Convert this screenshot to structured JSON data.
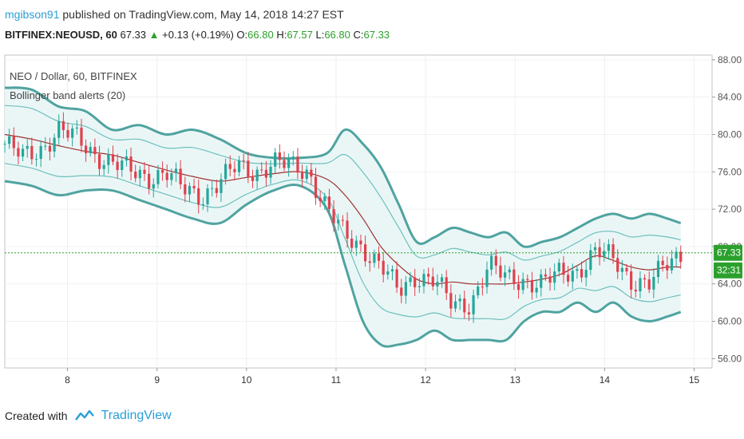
{
  "header": {
    "author": "mgibson91",
    "published_text": "published on TradingView.com, May 14, 2018 14:27 EST"
  },
  "quote": {
    "symbol": "BITFINEX:NEOUSD, 60",
    "last": "67.33",
    "change": "+0.13 (+0.19%)",
    "o_label": "O:",
    "o_value": "66.80",
    "h_label": "H:",
    "h_value": "67.57",
    "l_label": "L:",
    "l_value": "66.80",
    "c_label": "C:",
    "c_value": "67.33"
  },
  "legend": {
    "line1": "NEO / Dollar, 60, BITFINEX",
    "line2": "Bollinger band alerts (20)"
  },
  "price_tag": "67.33",
  "time_tag": "32:31",
  "footer": {
    "created_with": "Created with",
    "brand": "TradingView"
  },
  "colors": {
    "up": "#26a69a",
    "down": "#e0404d",
    "band": "#4fa3a0",
    "inner_band": "#6cc0bd",
    "basis": "#a0302f",
    "fill": "#eaf6f6",
    "price_line": "#2ca02c"
  },
  "chart_data": {
    "type": "candlestick",
    "title": "NEO / Dollar, 60, BITFINEX",
    "indicator": "Bollinger band alerts (20)",
    "x_ticks": [
      "8",
      "9",
      "10",
      "11",
      "12",
      "13",
      "14",
      "15"
    ],
    "y_ticks": [
      "56.00",
      "60.00",
      "64.00",
      "68.00",
      "72.00",
      "76.00",
      "80.00",
      "84.00",
      "88.00"
    ],
    "ylim": [
      55,
      88.5
    ],
    "xlim": [
      7.3,
      15.2
    ],
    "last_price": 67.33,
    "series": [
      {
        "name": "Close",
        "x": [
          7.3,
          7.5,
          7.7,
          7.9,
          8.1,
          8.3,
          8.5,
          8.7,
          8.9,
          9.1,
          9.3,
          9.5,
          9.7,
          9.9,
          10.1,
          10.3,
          10.5,
          10.7,
          10.9,
          11.1,
          11.3,
          11.5,
          11.7,
          11.9,
          12.1,
          12.3,
          12.5,
          12.7,
          12.9,
          13.1,
          13.3,
          13.5,
          13.7,
          13.9,
          14.1,
          14.3,
          14.5,
          14.7,
          14.85
        ],
        "values": [
          79,
          77.5,
          78.5,
          80.5,
          79.5,
          78,
          77,
          76,
          75.5,
          76,
          74,
          73.5,
          75,
          76.5,
          76,
          77,
          76.5,
          76,
          72,
          69,
          68,
          66,
          63,
          65,
          64.5,
          61.5,
          62,
          66,
          64.5,
          64.5,
          64,
          65,
          65.5,
          67.5,
          66.5,
          64.5,
          64,
          66,
          67.3
        ]
      },
      {
        "name": "Upper band",
        "x": [
          7.3,
          7.6,
          7.9,
          8.2,
          8.5,
          8.8,
          9.1,
          9.4,
          9.7,
          10,
          10.3,
          10.6,
          10.9,
          11.1,
          11.3,
          11.5,
          11.7,
          11.9,
          12.1,
          12.3,
          12.5,
          12.7,
          12.9,
          13.1,
          13.3,
          13.5,
          13.7,
          13.9,
          14.1,
          14.3,
          14.5,
          14.7,
          14.85
        ],
        "values": [
          85,
          84.8,
          83,
          82.5,
          80.5,
          81,
          80,
          80.5,
          79.5,
          78,
          77.5,
          77.5,
          78,
          80.5,
          79,
          76.5,
          72.5,
          68.5,
          69,
          70,
          69.5,
          69,
          69.5,
          68,
          68.5,
          69,
          70,
          71,
          71.5,
          71,
          71.5,
          71,
          70.5
        ]
      },
      {
        "name": "Lower band",
        "x": [
          7.3,
          7.6,
          7.9,
          8.2,
          8.5,
          8.8,
          9.1,
          9.4,
          9.7,
          10,
          10.3,
          10.6,
          10.9,
          11.1,
          11.3,
          11.5,
          11.7,
          11.9,
          12.1,
          12.3,
          12.5,
          12.7,
          12.9,
          13.1,
          13.3,
          13.5,
          13.7,
          13.9,
          14.1,
          14.3,
          14.5,
          14.7,
          14.85
        ],
        "values": [
          75,
          74.5,
          73.5,
          74,
          74,
          73,
          72,
          71,
          70.5,
          72.5,
          74,
          74.5,
          72,
          66,
          60,
          57.5,
          57.5,
          58,
          59,
          58,
          58,
          58,
          58,
          60,
          61,
          61,
          62,
          61,
          62,
          60.5,
          60,
          60.5,
          61
        ]
      },
      {
        "name": "Basis",
        "x": [
          7.3,
          7.6,
          7.9,
          8.2,
          8.5,
          8.8,
          9.1,
          9.4,
          9.7,
          10,
          10.3,
          10.6,
          10.9,
          11.1,
          11.3,
          11.5,
          11.7,
          11.9,
          12.1,
          12.3,
          12.5,
          12.7,
          12.9,
          13.1,
          13.3,
          13.5,
          13.7,
          13.9,
          14.1,
          14.3,
          14.5,
          14.7,
          14.85
        ],
        "values": [
          80,
          79.5,
          78.8,
          78.2,
          77.8,
          77,
          76.2,
          75.5,
          75,
          75.4,
          75.8,
          76,
          75.2,
          73.5,
          71,
          68,
          66,
          64.5,
          64,
          64.2,
          64,
          64,
          64,
          64.2,
          64.5,
          65,
          66,
          67,
          66.5,
          65.8,
          65.5,
          65.8,
          65.8
        ]
      }
    ]
  }
}
